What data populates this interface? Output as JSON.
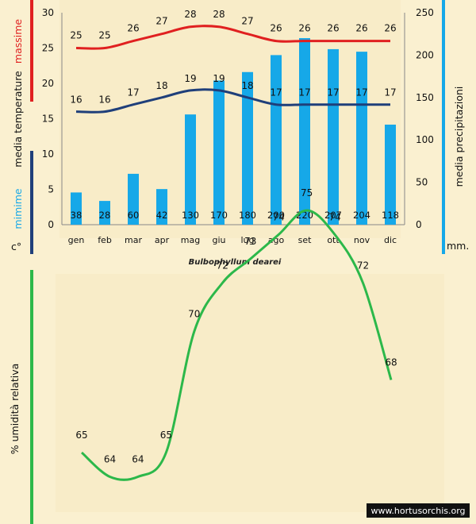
{
  "chart_data": [
    {
      "type": "bar+line",
      "title": "Bulbophyllum dearei",
      "categories": [
        "gen",
        "feb",
        "mar",
        "apr",
        "mag",
        "giu",
        "lug",
        "ago",
        "set",
        "ott",
        "nov",
        "dic"
      ],
      "bar_series": {
        "name": "media precipitazioni",
        "unit": "mm.",
        "values": [
          38,
          28,
          60,
          42,
          130,
          170,
          180,
          200,
          220,
          207,
          204,
          118
        ]
      },
      "line_series": [
        {
          "name": "massime",
          "values": [
            25,
            25,
            26,
            27,
            28,
            28,
            27,
            26,
            26,
            26,
            26,
            26
          ]
        },
        {
          "name": "mimime",
          "values": [
            16,
            16,
            17,
            18,
            19,
            19,
            18,
            17,
            17,
            17,
            17,
            17
          ]
        }
      ],
      "y_left": {
        "label_parts": [
          "c°",
          "mimime",
          "media  temperature",
          "massime"
        ],
        "ticks": [
          "0",
          "5",
          "10",
          "15",
          "20",
          "25",
          "30"
        ],
        "ylim": [
          0,
          30
        ]
      },
      "y_right": {
        "label": "media  precipitazioni",
        "unit_label": "mm.",
        "ticks": [
          "0",
          "50",
          "100",
          "150",
          "200",
          "250"
        ],
        "ylim": [
          0,
          250
        ]
      }
    },
    {
      "type": "line",
      "categories": [
        "gen",
        "feb",
        "mar",
        "apr",
        "mag",
        "giu",
        "lug",
        "ago",
        "set",
        "ott",
        "nov",
        "dic"
      ],
      "series": [
        {
          "name": "% umidità relativa",
          "values": [
            65,
            64,
            64,
            65,
            70,
            72,
            73,
            74,
            75,
            74,
            72,
            68
          ]
        }
      ],
      "ylabel": "% umidità relativa"
    }
  ],
  "watermark": "www.hortusorchis.org",
  "colors": {
    "max": "#e02020",
    "min": "#1f3f7a",
    "bar": "#16a8e8",
    "humidity": "#2cb84a",
    "bg": "#faf0d0"
  }
}
